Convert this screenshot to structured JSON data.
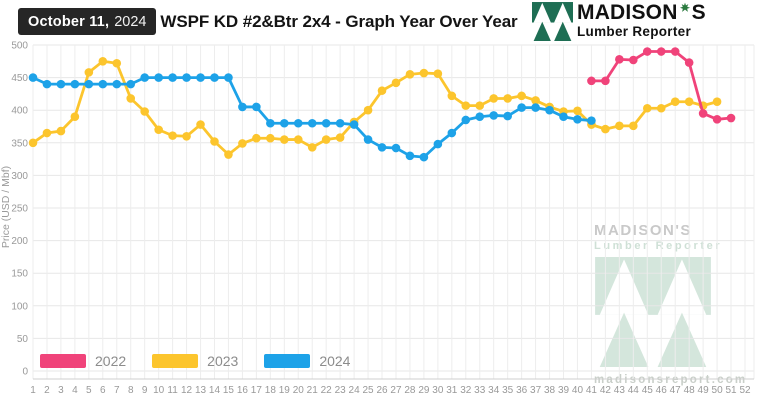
{
  "header": {
    "date_badge": {
      "date": "October 11,",
      "year": "2024"
    },
    "title": "WSPF KD #2&Btr 2x4 - Graph Year Over Year",
    "brand": {
      "name": "MADISON",
      "suffix": "S",
      "tagline": "Lumber Reporter"
    }
  },
  "chart_data": {
    "type": "line",
    "title": "WSPF KD #2&Btr 2x4 - Graph Year Over Year",
    "ylabel": "Price (USD / Mbf)",
    "xlabel": "",
    "x_unit": "week",
    "x_range": [
      1,
      52
    ],
    "ylim": [
      0,
      500
    ],
    "ytick_step": 50,
    "grid": true,
    "legend_position": "bottom-left",
    "series": [
      {
        "name": "2022",
        "color": "#f0437a",
        "start_week": 41,
        "values": [
          445,
          445,
          478,
          477,
          490,
          490,
          490,
          473,
          395,
          386,
          388
        ]
      },
      {
        "name": "2023",
        "color": "#fcc52d",
        "start_week": 1,
        "values": [
          350,
          365,
          368,
          390,
          458,
          475,
          472,
          418,
          398,
          370,
          361,
          360,
          378,
          352,
          332,
          349,
          357,
          357,
          355,
          355,
          343,
          355,
          358,
          382,
          400,
          430,
          442,
          455,
          457,
          456,
          422,
          407,
          407,
          418,
          418,
          422,
          415,
          405,
          398,
          399,
          378,
          371,
          376,
          376,
          403,
          403,
          413,
          413,
          407,
          413
        ]
      },
      {
        "name": "2024",
        "color": "#1da2e8",
        "start_week": 1,
        "values": [
          450,
          440,
          440,
          440,
          440,
          440,
          440,
          440,
          450,
          450,
          450,
          450,
          450,
          450,
          450,
          405,
          405,
          380,
          380,
          380,
          380,
          380,
          380,
          378,
          355,
          343,
          342,
          330,
          328,
          348,
          365,
          385,
          390,
          392,
          391,
          404,
          404,
          400,
          390,
          386,
          384
        ]
      }
    ]
  },
  "watermark": {
    "line1": "MADISON'S",
    "line2": "Lumber Reporter",
    "url": "madisonsreport.com"
  },
  "colors": {
    "badge_bg": "#262626",
    "brand_green": "#1e6e54",
    "leaf_green": "#2b7a3f",
    "watermark_green": "#d4e6dc",
    "grid_v": "#ededed",
    "grid_h": "#e7e7e7",
    "axis": "#cfcfcf"
  }
}
